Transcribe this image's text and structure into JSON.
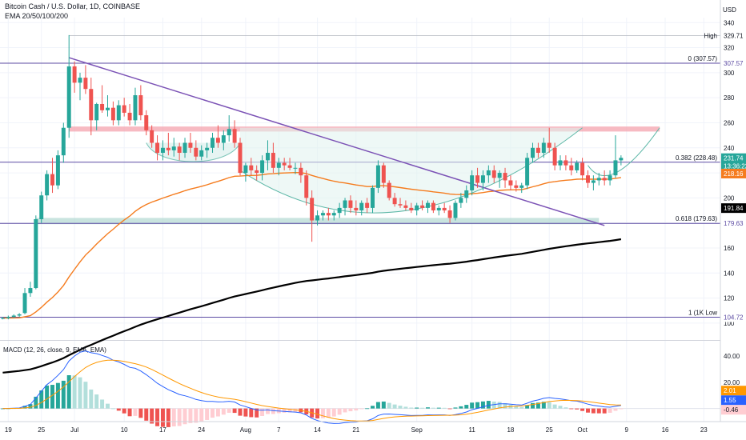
{
  "header": {
    "title": "Bitcoin Cash / U.S. Dollar, 1D, COINBASE",
    "indicator": "EMA 20/50/100/200",
    "currency": "USD"
  },
  "colors": {
    "up": "#26a69a",
    "down": "#ef5350",
    "ema_orange": "#f57c1f",
    "ema_black": "#000000",
    "trendline": "#7b52b5",
    "fib": "#5c4ba3",
    "resistance_band": "#f4a3ad",
    "support_band": "#b2d8d2",
    "macd_line": "#2962ff",
    "signal_line": "#ff9800"
  },
  "chart_data": {
    "type": "candlestick",
    "title": "Bitcoin Cash / U.S. Dollar, 1D, COINBASE",
    "y_axis": {
      "range": [
        98,
        344
      ],
      "ticks": [
        100,
        120,
        140,
        160,
        180,
        200,
        220,
        240,
        260,
        280,
        300,
        320,
        340
      ]
    },
    "x_axis": {
      "ticks": [
        {
          "label": "19",
          "day": 0
        },
        {
          "label": "25",
          "day": 6
        },
        {
          "label": "Jul",
          "day": 12
        },
        {
          "label": "10",
          "day": 21
        },
        {
          "label": "17",
          "day": 28
        },
        {
          "label": "24",
          "day": 35
        },
        {
          "label": "Aug",
          "day": 43
        },
        {
          "label": "7",
          "day": 49
        },
        {
          "label": "14",
          "day": 56
        },
        {
          "label": "21",
          "day": 63
        },
        {
          "label": "Sep",
          "day": 74
        },
        {
          "label": "11",
          "day": 84
        },
        {
          "label": "18",
          "day": 91
        },
        {
          "label": "25",
          "day": 98
        },
        {
          "label": "Oct",
          "day": 104
        },
        {
          "label": "9",
          "day": 112
        },
        {
          "label": "16",
          "day": 119
        },
        {
          "label": "23",
          "day": 126
        }
      ]
    },
    "candles": [
      [
        -1,
        104,
        105,
        103,
        104
      ],
      [
        0,
        104,
        106,
        103,
        105
      ],
      [
        1,
        105,
        107,
        104,
        106
      ],
      [
        2,
        106,
        108,
        105,
        107
      ],
      [
        3,
        108,
        128,
        107,
        124
      ],
      [
        4,
        124,
        133,
        121,
        128
      ],
      [
        5,
        128,
        186,
        127,
        183
      ],
      [
        6,
        183,
        205,
        180,
        202
      ],
      [
        7,
        202,
        222,
        198,
        219
      ],
      [
        8,
        219,
        232,
        204,
        210
      ],
      [
        9,
        210,
        238,
        207,
        234
      ],
      [
        10,
        234,
        260,
        228,
        256
      ],
      [
        11,
        256,
        330,
        248,
        305
      ],
      [
        12,
        305,
        309,
        284,
        292
      ],
      [
        13,
        292,
        300,
        278,
        296
      ],
      [
        14,
        296,
        306,
        283,
        287
      ],
      [
        15,
        287,
        296,
        250,
        262
      ],
      [
        16,
        262,
        276,
        254,
        275
      ],
      [
        17,
        275,
        290,
        268,
        270
      ],
      [
        18,
        270,
        282,
        265,
        272
      ],
      [
        19,
        272,
        277,
        258,
        262
      ],
      [
        20,
        262,
        278,
        258,
        274
      ],
      [
        21,
        274,
        280,
        265,
        268
      ],
      [
        22,
        268,
        275,
        258,
        262
      ],
      [
        23,
        262,
        288,
        258,
        282
      ],
      [
        24,
        282,
        290,
        262,
        266
      ],
      [
        25,
        266,
        270,
        250,
        254
      ],
      [
        26,
        254,
        258,
        240,
        244
      ],
      [
        27,
        244,
        250,
        230,
        236
      ],
      [
        28,
        236,
        246,
        230,
        240
      ],
      [
        29,
        240,
        252,
        234,
        238
      ],
      [
        30,
        238,
        248,
        233,
        241
      ],
      [
        31,
        241,
        244,
        230,
        236
      ],
      [
        32,
        236,
        248,
        232,
        244
      ],
      [
        33,
        244,
        252,
        236,
        240
      ],
      [
        34,
        240,
        246,
        230,
        233
      ],
      [
        35,
        233,
        242,
        230,
        238
      ],
      [
        36,
        238,
        244,
        232,
        240
      ],
      [
        37,
        240,
        252,
        236,
        248
      ],
      [
        38,
        248,
        258,
        240,
        244
      ],
      [
        39,
        244,
        254,
        238,
        250
      ],
      [
        40,
        250,
        266,
        245,
        255
      ],
      [
        41,
        255,
        262,
        240,
        244
      ],
      [
        42,
        244,
        248,
        218,
        220
      ],
      [
        43,
        220,
        228,
        213,
        226
      ],
      [
        44,
        226,
        232,
        218,
        222
      ],
      [
        45,
        222,
        226,
        214,
        220
      ],
      [
        46,
        220,
        234,
        214,
        230
      ],
      [
        47,
        230,
        246,
        222,
        236
      ],
      [
        48,
        236,
        244,
        220,
        224
      ],
      [
        49,
        224,
        232,
        218,
        228
      ],
      [
        50,
        228,
        232,
        222,
        226
      ],
      [
        51,
        226,
        232,
        222,
        224
      ],
      [
        52,
        224,
        228,
        219,
        224
      ],
      [
        53,
        224,
        228,
        212,
        218
      ],
      [
        54,
        218,
        222,
        194,
        200
      ],
      [
        55,
        200,
        206,
        165,
        182
      ],
      [
        56,
        182,
        190,
        178,
        186
      ],
      [
        57,
        186,
        190,
        182,
        188
      ],
      [
        58,
        188,
        192,
        182,
        186
      ],
      [
        59,
        186,
        190,
        182,
        188
      ],
      [
        60,
        188,
        196,
        184,
        192
      ],
      [
        61,
        192,
        200,
        186,
        198
      ],
      [
        62,
        198,
        202,
        188,
        192
      ],
      [
        63,
        192,
        198,
        186,
        190
      ],
      [
        64,
        190,
        198,
        186,
        196
      ],
      [
        65,
        196,
        200,
        188,
        192
      ],
      [
        66,
        192,
        210,
        188,
        208
      ],
      [
        67,
        208,
        230,
        204,
        226
      ],
      [
        68,
        226,
        228,
        208,
        212
      ],
      [
        69,
        212,
        214,
        198,
        200
      ],
      [
        70,
        200,
        204,
        193,
        195
      ],
      [
        71,
        195,
        200,
        192,
        194
      ],
      [
        72,
        194,
        198,
        190,
        192
      ],
      [
        73,
        192,
        196,
        188,
        190
      ],
      [
        74,
        190,
        196,
        186,
        194
      ],
      [
        75,
        194,
        198,
        190,
        192
      ],
      [
        76,
        192,
        198,
        188,
        196
      ],
      [
        77,
        196,
        198,
        188,
        190
      ],
      [
        78,
        190,
        194,
        186,
        192
      ],
      [
        79,
        192,
        196,
        188,
        190
      ],
      [
        80,
        190,
        194,
        180,
        184
      ],
      [
        81,
        184,
        198,
        182,
        196
      ],
      [
        82,
        196,
        204,
        192,
        200
      ],
      [
        83,
        200,
        210,
        196,
        206
      ],
      [
        84,
        206,
        222,
        202,
        218
      ],
      [
        85,
        218,
        224,
        208,
        212
      ],
      [
        86,
        212,
        222,
        206,
        218
      ],
      [
        87,
        218,
        226,
        212,
        222
      ],
      [
        88,
        222,
        226,
        212,
        216
      ],
      [
        89,
        216,
        222,
        208,
        220
      ],
      [
        90,
        220,
        224,
        208,
        214
      ],
      [
        91,
        214,
        218,
        206,
        210
      ],
      [
        92,
        210,
        214,
        205,
        208
      ],
      [
        93,
        208,
        212,
        204,
        210
      ],
      [
        94,
        210,
        236,
        207,
        232
      ],
      [
        95,
        232,
        244,
        228,
        240
      ],
      [
        96,
        240,
        244,
        232,
        236
      ],
      [
        97,
        236,
        248,
        232,
        244
      ],
      [
        98,
        244,
        256,
        236,
        240
      ],
      [
        99,
        240,
        244,
        222,
        226
      ],
      [
        100,
        226,
        234,
        222,
        230
      ],
      [
        101,
        230,
        234,
        222,
        226
      ],
      [
        102,
        226,
        232,
        218,
        222
      ],
      [
        103,
        222,
        230,
        220,
        228
      ],
      [
        104,
        228,
        232,
        214,
        218
      ],
      [
        105,
        218,
        222,
        208,
        212
      ],
      [
        106,
        212,
        218,
        206,
        214
      ],
      [
        107,
        214,
        220,
        210,
        216
      ],
      [
        108,
        216,
        222,
        210,
        214
      ],
      [
        109,
        214,
        222,
        210,
        218
      ],
      [
        110,
        218,
        250,
        216,
        230
      ],
      [
        111,
        230,
        234,
        226,
        232
      ]
    ],
    "ema_50": {
      "name": "EMA",
      "value": 218.16
    },
    "ema_200": {
      "name": "EMA",
      "value": 191.84
    },
    "last_price": 231.74,
    "countdown": "13:36:22",
    "high_marker": {
      "label": "High",
      "value": 329.71
    },
    "fibonacci": [
      {
        "label": "0 (307.57)",
        "value": 307.57
      },
      {
        "label": "0.382 (228.48)",
        "value": 228.48
      },
      {
        "label": "0.618 (179.63)",
        "value": 179.63
      },
      {
        "label": "1 (1K Low",
        "value": 104.72
      }
    ],
    "zones": {
      "resistance": [
        253,
        257
      ],
      "support": [
        179,
        184
      ]
    },
    "trendline": {
      "from": {
        "day": 11,
        "value": 312
      },
      "to": {
        "day": 108,
        "value": 178
      }
    },
    "macd": {
      "title": "MACD (12, 26, close, 9, EMA, EMA)",
      "y_range": [
        -10,
        48
      ],
      "ticks": [
        40,
        20
      ],
      "histogram": 2.01,
      "macd_value": 1.55,
      "signal_value": -0.46
    }
  }
}
